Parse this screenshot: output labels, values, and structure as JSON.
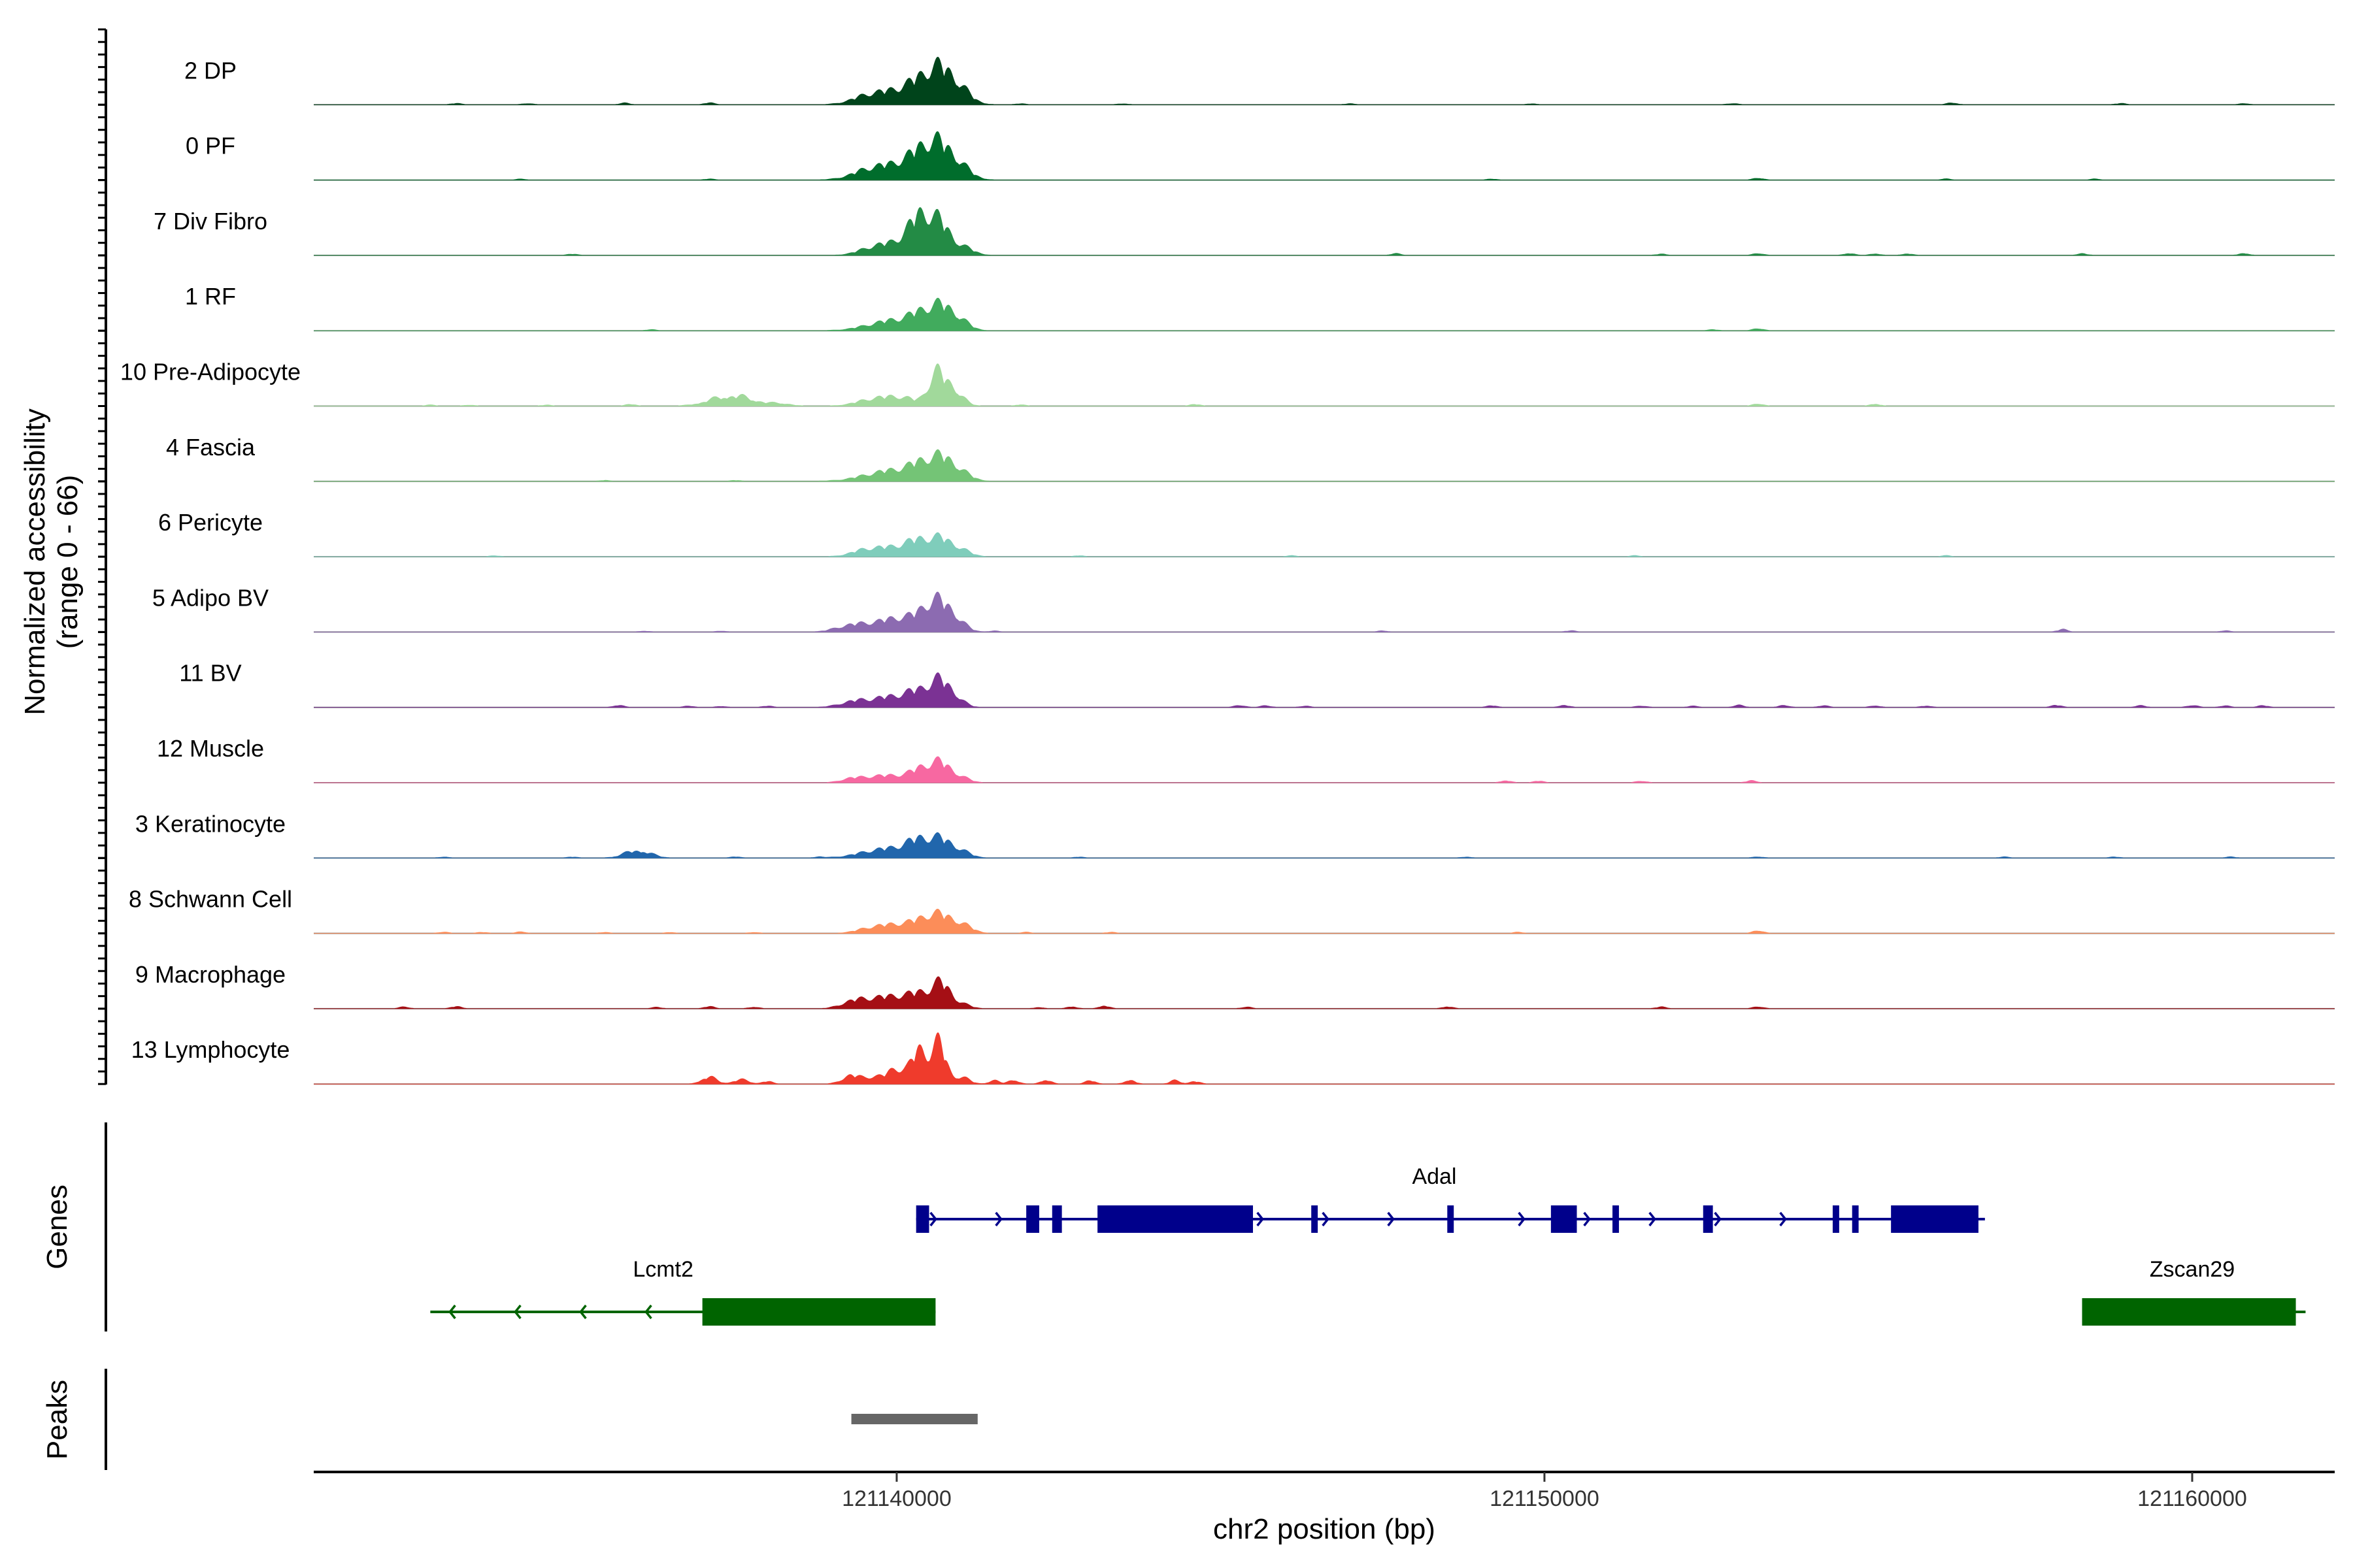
{
  "chart_data": {
    "type": "area",
    "title": "",
    "chromosome": "chr2",
    "xlabel": "chr2 position (bp)",
    "ylabel_line1": "Normalized accessibility",
    "ylabel_line2": "(range 0 - 66)",
    "y_range": [
      0,
      66
    ],
    "xlim": [
      121131000,
      121162200
    ],
    "x_ticks": [
      {
        "value": 121140000,
        "label": "121140000"
      },
      {
        "value": 121150000,
        "label": "121150000"
      },
      {
        "value": 121160000,
        "label": "121160000"
      }
    ],
    "series": [
      {
        "name": "2 DP",
        "color": "#00441b",
        "peaks": [
          [
            121140100,
            15,
            400
          ],
          [
            121140450,
            17,
            260
          ],
          [
            121140720,
            28,
            220
          ],
          [
            121139550,
            7,
            250
          ],
          [
            121141000,
            9,
            180
          ]
        ],
        "blips": [
          [
            121133200,
            1.5
          ],
          [
            121134300,
            1.5
          ],
          [
            121135800,
            1.8
          ],
          [
            121137100,
            2.2
          ],
          [
            121141900,
            1.2
          ],
          [
            121143500,
            1.2
          ],
          [
            121147000,
            1.2
          ],
          [
            121149800,
            1.2
          ],
          [
            121152900,
            1.5
          ],
          [
            121156300,
            2.2
          ],
          [
            121158900,
            1.5
          ],
          [
            121160800,
            1.5
          ]
        ]
      },
      {
        "name": "0 PF",
        "color": "#006d2c",
        "peaks": [
          [
            121140100,
            17,
            420
          ],
          [
            121140450,
            22,
            240
          ],
          [
            121140720,
            24,
            220
          ],
          [
            121139550,
            7,
            260
          ],
          [
            121141000,
            8,
            180
          ]
        ],
        "blips": [
          [
            121134200,
            1.2
          ],
          [
            121137100,
            1.2
          ],
          [
            121149200,
            1.2
          ],
          [
            121153300,
            2.5
          ],
          [
            121156200,
            1.2
          ],
          [
            121158500,
            1.2
          ]
        ]
      },
      {
        "name": "7 Div Fibro",
        "color": "#238b45",
        "peaks": [
          [
            121140050,
            14,
            300
          ],
          [
            121140380,
            40,
            180
          ],
          [
            121140700,
            30,
            160
          ],
          [
            121139600,
            6,
            220
          ],
          [
            121141050,
            8,
            160
          ]
        ],
        "blips": [
          [
            121135000,
            1.5
          ],
          [
            121147700,
            2.0
          ],
          [
            121151800,
            1.5
          ],
          [
            121153300,
            2.5
          ],
          [
            121154700,
            2.5
          ],
          [
            121155100,
            2.0
          ],
          [
            121155600,
            2.0
          ],
          [
            121158300,
            2.0
          ],
          [
            121160800,
            2.5
          ]
        ]
      },
      {
        "name": "1 RF",
        "color": "#41ab5d",
        "peaks": [
          [
            121139950,
            12,
            380
          ],
          [
            121140450,
            18,
            220
          ],
          [
            121140750,
            20,
            180
          ],
          [
            121141000,
            7,
            160
          ]
        ],
        "blips": [
          [
            121136200,
            1.2
          ],
          [
            121152600,
            1.2
          ],
          [
            121153300,
            2.8
          ]
        ]
      },
      {
        "name": "10 Pre-Adipocyte",
        "color": "#a1d99b",
        "peaks": [
          [
            121137350,
            10,
            280
          ],
          [
            121137700,
            5,
            220
          ],
          [
            121139650,
            8,
            260
          ],
          [
            121140100,
            9,
            240
          ],
          [
            121140600,
            34,
            120
          ],
          [
            121140850,
            22,
            150
          ],
          [
            121138200,
            3,
            160
          ]
        ],
        "blips": [
          [
            121132800,
            1.2
          ],
          [
            121133400,
            1.2
          ],
          [
            121134600,
            1.2
          ],
          [
            121135900,
            2.0
          ],
          [
            121141900,
            1.5
          ],
          [
            121144600,
            2.0
          ],
          [
            121153300,
            2.8
          ],
          [
            121155100,
            2.5
          ]
        ]
      },
      {
        "name": "4 Fascia",
        "color": "#74c476",
        "peaks": [
          [
            121139950,
            13,
            420
          ],
          [
            121140450,
            17,
            220
          ],
          [
            121140750,
            18,
            180
          ],
          [
            121141000,
            7,
            180
          ]
        ],
        "blips": [
          [
            121135500,
            1.2
          ],
          [
            121137500,
            1.2
          ]
        ]
      },
      {
        "name": "6 Pericyte",
        "color": "#7fcdbb",
        "peaks": [
          [
            121139500,
            6,
            220
          ],
          [
            121139950,
            10,
            300
          ],
          [
            121140350,
            15,
            200
          ],
          [
            121140700,
            18,
            180
          ],
          [
            121141000,
            6,
            160
          ]
        ],
        "blips": [
          [
            121133800,
            1.2
          ],
          [
            121142800,
            1.2
          ],
          [
            121146100,
            1.2
          ],
          [
            121151400,
            1.2
          ],
          [
            121156200,
            1.2
          ]
        ]
      },
      {
        "name": "5 Adipo BV",
        "color": "#8c6bb1",
        "peaks": [
          [
            121139250,
            6,
            220
          ],
          [
            121139700,
            9,
            280
          ],
          [
            121140150,
            14,
            260
          ],
          [
            121140600,
            34,
            200
          ],
          [
            121140900,
            12,
            160
          ]
        ],
        "blips": [
          [
            121136100,
            1.2
          ],
          [
            121137300,
            1.2
          ],
          [
            121141500,
            1.2
          ],
          [
            121147500,
            1.5
          ],
          [
            121150400,
            1.5
          ],
          [
            121158000,
            3.0
          ],
          [
            121160500,
            1.5
          ]
        ]
      },
      {
        "name": "11 BV",
        "color": "#7b3294",
        "peaks": [
          [
            121139350,
            7,
            220
          ],
          [
            121139850,
            11,
            240
          ],
          [
            121140300,
            17,
            200
          ],
          [
            121140650,
            28,
            160
          ],
          [
            121140900,
            10,
            140
          ]
        ],
        "blips": [
          [
            121135700,
            2.5
          ],
          [
            121136800,
            1.5
          ],
          [
            121137300,
            1.2
          ],
          [
            121138000,
            1.5
          ],
          [
            121145300,
            2.5
          ],
          [
            121145700,
            2.0
          ],
          [
            121146300,
            1.5
          ],
          [
            121149200,
            2.0
          ],
          [
            121150300,
            2.5
          ],
          [
            121151500,
            1.8
          ],
          [
            121152300,
            1.5
          ],
          [
            121153000,
            2.5
          ],
          [
            121153700,
            2.5
          ],
          [
            121154300,
            2.0
          ],
          [
            121155100,
            2.0
          ],
          [
            121155900,
            1.8
          ],
          [
            121157900,
            2.5
          ],
          [
            121159200,
            2.0
          ],
          [
            121160000,
            2.5
          ],
          [
            121160500,
            1.8
          ],
          [
            121161100,
            2.0
          ]
        ]
      },
      {
        "name": "12 Muscle",
        "color": "#f768a1",
        "peaks": [
          [
            121139300,
            5,
            160
          ],
          [
            121139650,
            6,
            180
          ],
          [
            121140000,
            7,
            200
          ],
          [
            121140400,
            16,
            180
          ],
          [
            121140700,
            20,
            160
          ],
          [
            121141000,
            5,
            140
          ]
        ],
        "blips": [
          [
            121149400,
            2.5
          ],
          [
            121149900,
            2.0
          ],
          [
            121151500,
            2.0
          ],
          [
            121153200,
            2.5
          ]
        ]
      },
      {
        "name": "3 Keratinocyte",
        "color": "#2166ac",
        "peaks": [
          [
            121136000,
            9,
            200
          ],
          [
            121139850,
            11,
            380
          ],
          [
            121140350,
            17,
            200
          ],
          [
            121140700,
            18,
            180
          ],
          [
            121141000,
            6,
            160
          ]
        ],
        "blips": [
          [
            121133000,
            1.2
          ],
          [
            121135000,
            1.2
          ],
          [
            121137500,
            1.5
          ],
          [
            121138800,
            1.2
          ],
          [
            121142800,
            1.2
          ],
          [
            121148800,
            1.2
          ],
          [
            121153300,
            1.5
          ],
          [
            121157100,
            1.2
          ],
          [
            121158800,
            1.2
          ],
          [
            121160600,
            1.2
          ]
        ]
      },
      {
        "name": "8 Schwann Cell",
        "color": "#fc8d59",
        "peaks": [
          [
            121139600,
            5,
            220
          ],
          [
            121140100,
            11,
            300
          ],
          [
            121140550,
            17,
            200
          ],
          [
            121140850,
            12,
            180
          ],
          [
            121141100,
            4,
            140
          ]
        ],
        "blips": [
          [
            121133000,
            1.5
          ],
          [
            121133600,
            1.2
          ],
          [
            121134200,
            1.8
          ],
          [
            121135500,
            1.2
          ],
          [
            121136500,
            1.2
          ],
          [
            121137800,
            1.2
          ],
          [
            121142000,
            1.2
          ],
          [
            121143300,
            1.2
          ],
          [
            121149600,
            1.2
          ],
          [
            121153300,
            3.5
          ]
        ]
      },
      {
        "name": "9 Macrophage",
        "color": "#a50f15",
        "peaks": [
          [
            121139300,
            7,
            180
          ],
          [
            121139650,
            10,
            220
          ],
          [
            121140050,
            12,
            220
          ],
          [
            121140400,
            15,
            180
          ],
          [
            121140700,
            27,
            140
          ],
          [
            121141000,
            5,
            140
          ]
        ],
        "blips": [
          [
            121132400,
            2.0
          ],
          [
            121133200,
            2.5
          ],
          [
            121136300,
            1.5
          ],
          [
            121137100,
            2.5
          ],
          [
            121137800,
            2.0
          ],
          [
            121142200,
            1.5
          ],
          [
            121142700,
            2.5
          ],
          [
            121143200,
            3.5
          ],
          [
            121145400,
            2.0
          ],
          [
            121148500,
            2.5
          ],
          [
            121151800,
            2.0
          ],
          [
            121153300,
            2.5
          ]
        ]
      },
      {
        "name": "13 Lymphocyte",
        "color": "#ef3b2c",
        "peaks": [
          [
            121137100,
            8,
            120
          ],
          [
            121137600,
            5,
            120
          ],
          [
            121139300,
            10,
            140
          ],
          [
            121139650,
            8,
            140
          ],
          [
            121140000,
            18,
            140
          ],
          [
            121140350,
            40,
            120
          ],
          [
            121140650,
            48,
            110
          ],
          [
            121141000,
            8,
            120
          ]
        ],
        "blips": [
          [
            121138000,
            3.0
          ],
          [
            121141500,
            4.0
          ],
          [
            121141800,
            5.0
          ],
          [
            121142300,
            5.0
          ],
          [
            121143000,
            4.0
          ],
          [
            121143600,
            5.0
          ],
          [
            121144300,
            4.0
          ],
          [
            121144600,
            3.0
          ]
        ]
      }
    ],
    "genes": [
      {
        "name": "Adal",
        "strand": "+",
        "color": "#00008b",
        "start": 121140300,
        "end": 121156800,
        "exons": [
          [
            121140300,
            121140500
          ],
          [
            121142000,
            121142200
          ],
          [
            121142400,
            121142550
          ],
          [
            121143100,
            121145500
          ],
          [
            121146400,
            121146500
          ],
          [
            121148500,
            121148600
          ],
          [
            121150100,
            121150500
          ],
          [
            121151050,
            121151150
          ],
          [
            121152450,
            121152600
          ],
          [
            121154450,
            121154550
          ],
          [
            121154750,
            121154850
          ],
          [
            121155350,
            121156700
          ]
        ]
      },
      {
        "name": "Lcmt2",
        "strand": "-",
        "color": "#006400",
        "start": 121132800,
        "end": 121140600,
        "exons": [
          [
            121137000,
            121140600
          ]
        ]
      },
      {
        "name": "Zscan29",
        "strand": "-",
        "color": "#006400",
        "start": 121158300,
        "end": 121161750,
        "exons": [
          [
            121158300,
            121161600
          ]
        ]
      }
    ],
    "peaks_panel": [
      {
        "start": 121139300,
        "end": 121141250,
        "color": "#666666"
      }
    ]
  },
  "panels": {
    "genes_title": "Genes",
    "peaks_title": "Peaks"
  }
}
